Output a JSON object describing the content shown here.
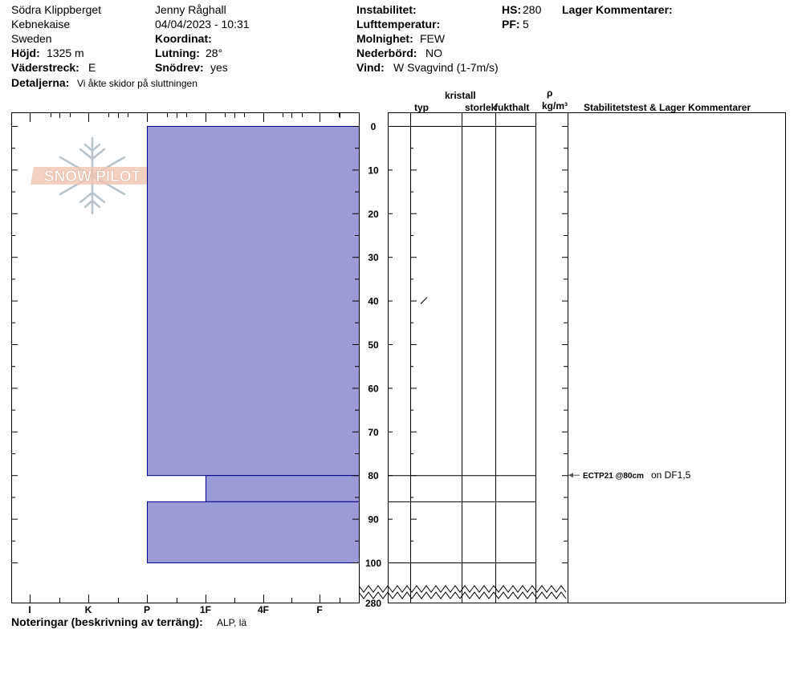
{
  "header": {
    "location": "Södra Klippberget",
    "range": "Kebnekaise",
    "country": "Sweden",
    "observer": "Jenny Råghall",
    "datetime": "04/04/2023 - 10:31",
    "elevation_label": "Höjd:",
    "elevation_value": "1325 m",
    "aspect_label": "Väderstreck:",
    "aspect_value": "E",
    "coord_label": "Koordinat:",
    "slope_label": "Lutning:",
    "slope_value": "28°",
    "wind_loading_label": "Snödrev:",
    "wind_loading_value": "yes",
    "details_label": "Detaljerna:",
    "details_value": "Vi åkte skidor på sluttningen",
    "instability_label": "Instabilitet:",
    "air_temp_label": "Lufttemperatur:",
    "sky_label": "Molnighet:",
    "sky_value": "FEW",
    "precip_label": "Nederbörd:",
    "precip_value": "NO",
    "wind_label": "Vind:",
    "wind_value": "W Svagvind (1-7m/s)",
    "hs_label": "HS:",
    "hs_value": "280",
    "pf_label": "PF:",
    "pf_value": "5",
    "layer_comments_label": "Lager Kommentarer:"
  },
  "columns": {
    "kristall": "kristall",
    "typ": "typ",
    "storlek": "storlek",
    "fukthalt": "fukthalt",
    "rho": "ρ",
    "density_unit": "kg/m³",
    "stab": "Stabilitetstest & Lager Kommentarer"
  },
  "footer": {
    "notes_label": "Noteringar (beskrivning av terräng):",
    "notes_value": "ALP, lä"
  },
  "logo": {
    "text": "SNOW PILOT"
  },
  "chart_data": {
    "type": "snow_profile",
    "y_axis": {
      "unit": "cm",
      "ticks": [
        "0",
        "10",
        "20",
        "30",
        "40",
        "50",
        "60",
        "70",
        "80",
        "90",
        "100"
      ],
      "bottom_label": "280",
      "range": [
        0,
        100
      ],
      "inverted": true,
      "broken_axis": true
    },
    "hardness_axis": {
      "ticks": [
        "I",
        "K",
        "P",
        "1F",
        "4F",
        "F"
      ]
    },
    "layers": [
      {
        "top": 0,
        "bottom": 80,
        "hardness": "P"
      },
      {
        "top": 80,
        "bottom": 86,
        "hardness": "1F"
      },
      {
        "top": 86,
        "bottom": 100,
        "hardness": "P"
      }
    ],
    "layer_boundaries": [
      0,
      80,
      86,
      100
    ],
    "crystal_symbol_depth": 40,
    "stability_test": {
      "depth": 80,
      "label": "ECTP21 @80cm",
      "comment": "on DF1,5"
    },
    "colors": {
      "layer_fill": "#9b9bd7",
      "layer_stroke": "#00008b"
    }
  }
}
